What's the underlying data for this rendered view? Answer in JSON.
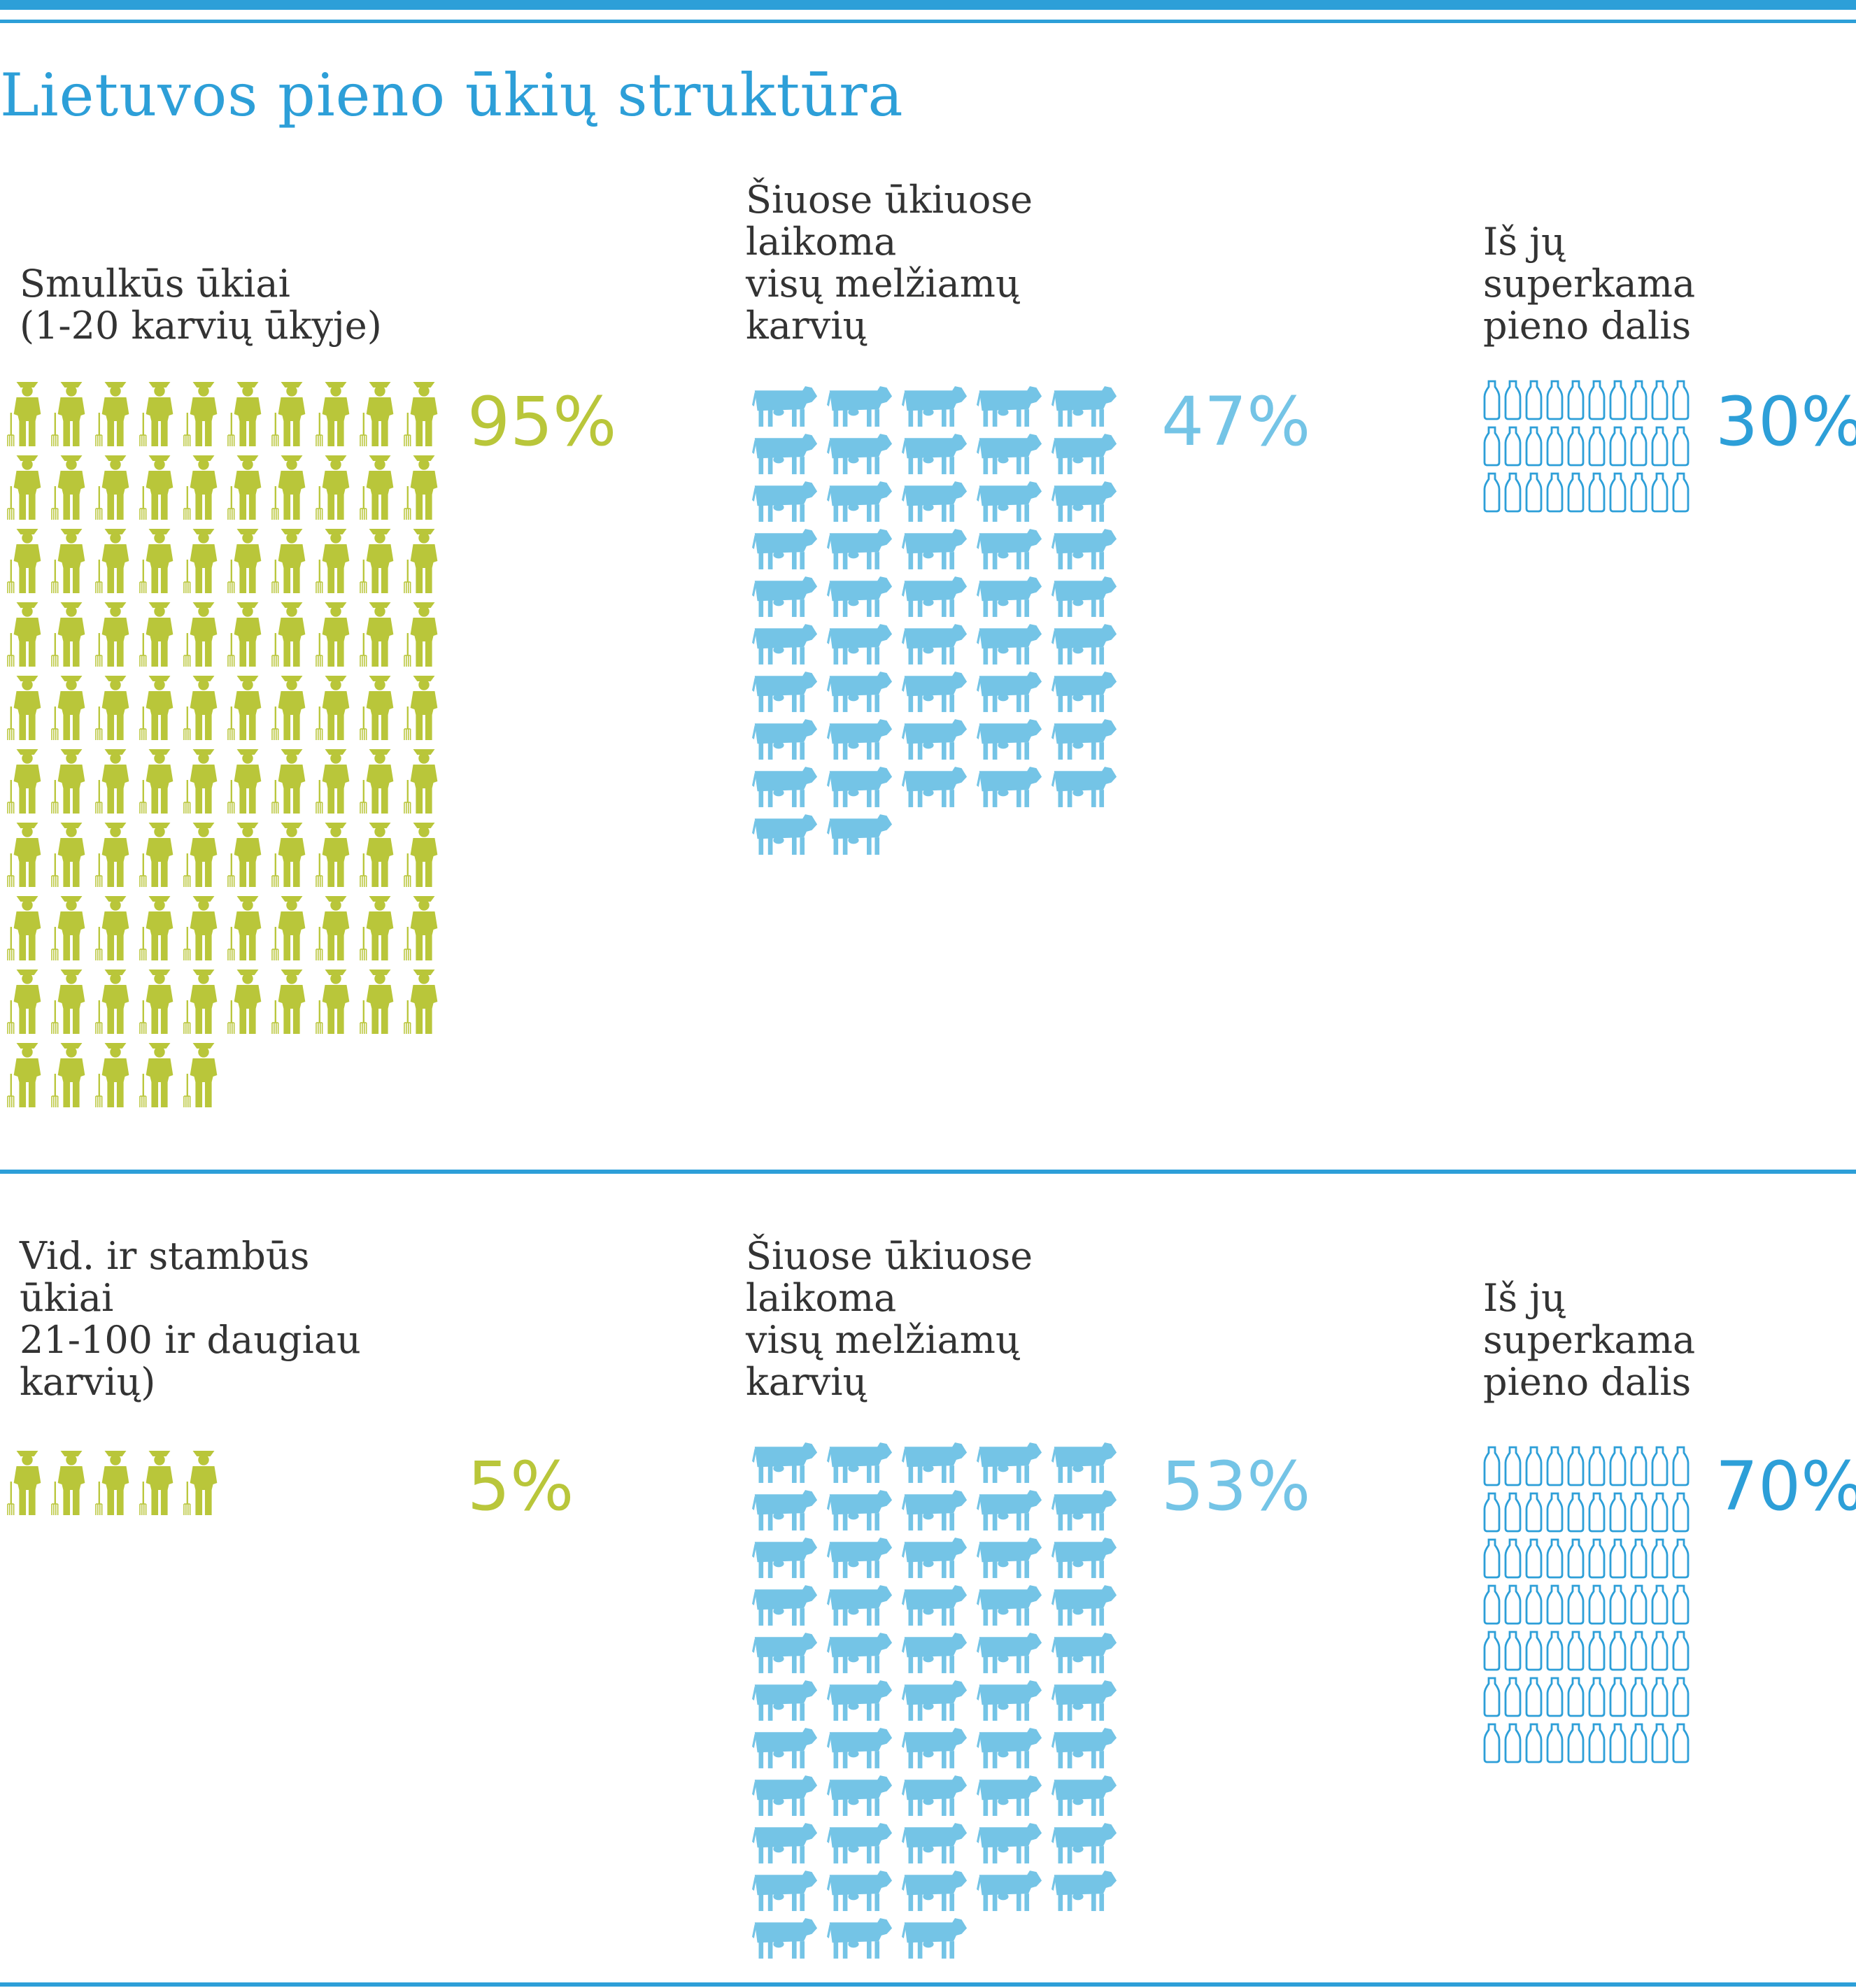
{
  "title": "Lietuvos pieno ūkių struktūra",
  "colors": {
    "blue": "#2d9fd8",
    "green": "#b9c63a",
    "light_blue": "#74c4e6",
    "text": "#333333"
  },
  "icons": {
    "farmer": "farmer-icon",
    "cow": "cow-icon",
    "bottle": "milk-bottle-icon"
  },
  "sections": [
    {
      "farms_label": "Smulkūs ūkiai\n(1-20 karvių ūkyje)",
      "farms_pct": "95%",
      "cows_label": "Šiuose ūkiuose\nlaikoma\nvisų melžiamų\nkarvių",
      "cows_pct": "47%",
      "milk_label": "Iš jų\nsuperkama\npieno dalis",
      "milk_pct": "30%"
    },
    {
      "farms_label": "Vid. ir stambūs\nūkiai\n21-100 ir daugiau\nkarvių)",
      "farms_pct": "5%",
      "cows_label": "Šiuose ūkiuose\nlaikoma\nvisų melžiamų\nkarvių",
      "cows_pct": "53%",
      "milk_label": "Iš jų\nsuperkama\npieno dalis",
      "milk_pct": "70%"
    }
  ],
  "chart_data": [
    {
      "type": "bar",
      "categories": [
        "Smulkūs ūkiai",
        "Vid. ir stambūs ūkiai"
      ],
      "values": [
        95,
        5
      ],
      "unit": "%",
      "icon": "farmer-icon"
    },
    {
      "type": "bar",
      "categories": [
        "Smulkūs ūkiai",
        "Vid. ir stambūs ūkiai"
      ],
      "values": [
        47,
        53
      ],
      "unit": "%",
      "icon": "cow-icon"
    },
    {
      "type": "bar",
      "categories": [
        "Smulkūs ūkiai",
        "Vid. ir stambūs ūkiai"
      ],
      "values": [
        30,
        70
      ],
      "unit": "%",
      "icon": "milk-bottle-icon"
    }
  ]
}
